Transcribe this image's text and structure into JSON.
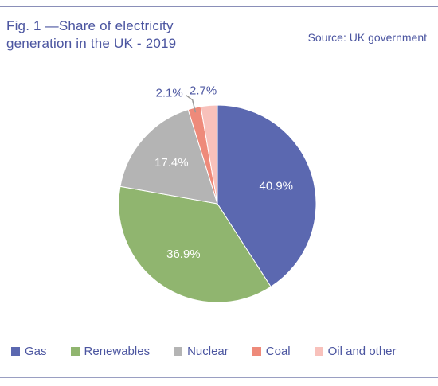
{
  "header": {
    "title": "Fig. 1 —Share of electricity\ngeneration in the UK - 2019",
    "source": "Source: UK government"
  },
  "chart_data": {
    "type": "pie",
    "categories": [
      "Gas",
      "Renewables",
      "Nuclear",
      "Coal",
      "Oil and other"
    ],
    "values": [
      40.9,
      36.9,
      17.4,
      2.1,
      2.7
    ],
    "labels": [
      "40.9%",
      "36.9%",
      "17.4%",
      "2.1%",
      "2.7%"
    ],
    "colors": [
      "#5b68b0",
      "#90b56f",
      "#b4b4b4",
      "#ee8a7a",
      "#f8c1bb"
    ],
    "legend_position": "bottom"
  }
}
